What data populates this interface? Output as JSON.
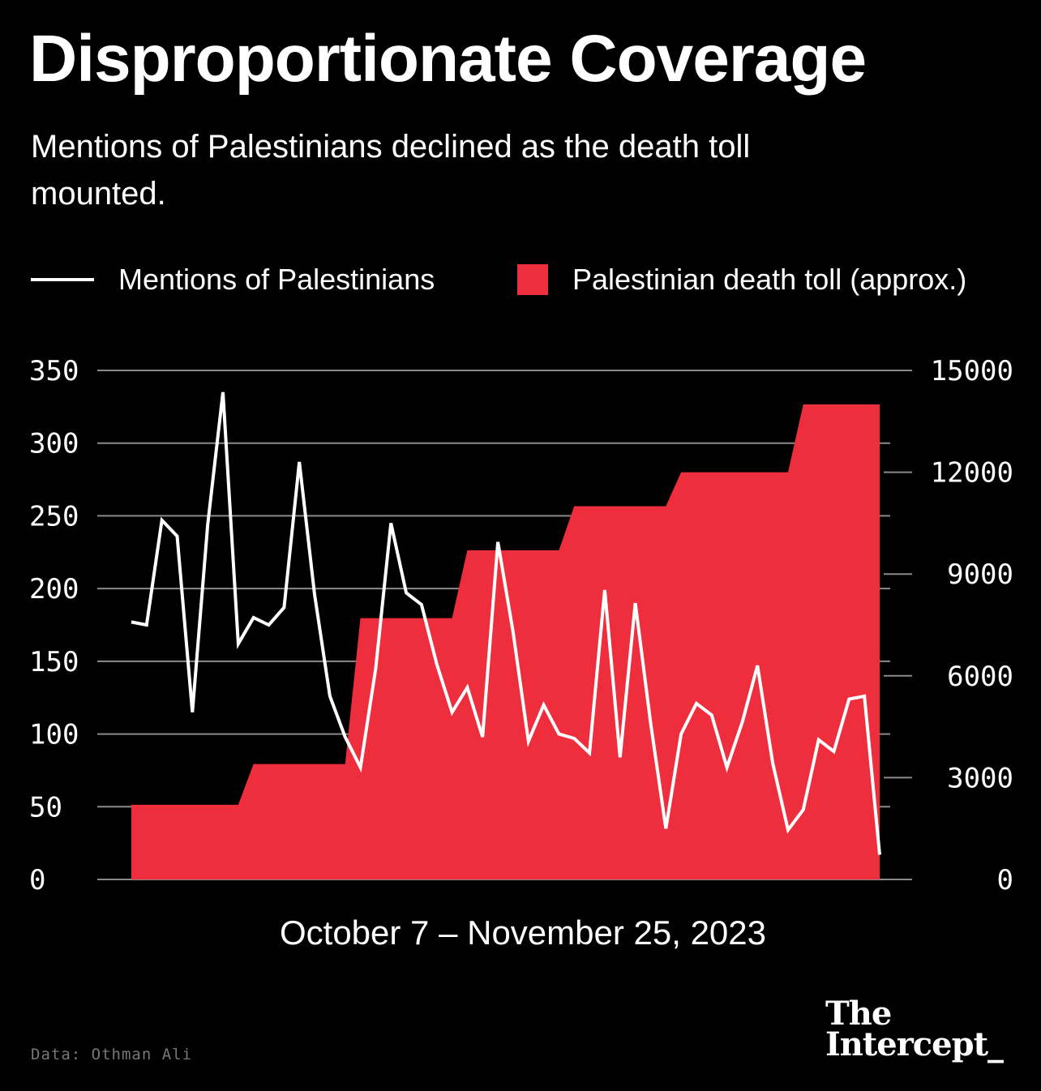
{
  "header": {
    "title": "Disproportionate Coverage",
    "subtitle": "Mentions of Palestinians declined as the death toll mounted."
  },
  "legend": {
    "mentions_label": "Mentions of Palestinians",
    "deaths_label": "Palestinian death toll (approx.)"
  },
  "colors": {
    "background": "#000000",
    "line": "#ffffff",
    "area": "#ee2d3d",
    "grid": "#8a8a8a"
  },
  "chart_data": {
    "type": "line",
    "title": "Disproportionate Coverage",
    "xlabel": "October 7 – November 25, 2023",
    "ylabel": "",
    "ylim": [
      0,
      350
    ],
    "y2lim": [
      0,
      15000
    ],
    "yticks": [
      "0",
      "50",
      "100",
      "150",
      "200",
      "250",
      "300",
      "350"
    ],
    "y2ticks": [
      "0",
      "3000",
      "6000",
      "9000",
      "12000",
      "15000"
    ],
    "grid": true,
    "x": [
      1,
      2,
      3,
      4,
      5,
      6,
      7,
      8,
      9,
      10,
      11,
      12,
      13,
      14,
      15,
      16,
      17,
      18,
      19,
      20,
      21,
      22,
      23,
      24,
      25,
      26,
      27,
      28,
      29,
      30,
      31,
      32,
      33,
      34,
      35,
      36,
      37,
      38,
      39,
      40,
      41,
      42,
      43,
      44,
      45,
      46,
      47,
      48,
      49,
      50
    ],
    "series": [
      {
        "name": "Mentions of Palestinians",
        "axis": "left",
        "style": "line",
        "values": [
          177,
          175,
          247,
          236,
          115,
          244,
          335,
          162,
          180,
          175,
          187,
          287,
          196,
          126,
          98,
          77,
          145,
          245,
          197,
          189,
          148,
          115,
          132,
          98,
          232,
          170,
          95,
          120,
          100,
          97,
          87,
          199,
          84,
          190,
          108,
          35,
          100,
          121,
          113,
          77,
          108,
          147,
          80,
          34,
          48,
          96,
          88,
          124,
          126,
          17
        ]
      },
      {
        "name": "Palestinian death toll (approx.)",
        "axis": "right",
        "style": "area-step",
        "values": [
          2200,
          2200,
          2200,
          2200,
          2200,
          2200,
          2200,
          2200,
          3400,
          3400,
          3400,
          3400,
          3400,
          3400,
          3400,
          7700,
          7700,
          7700,
          7700,
          7700,
          7700,
          7700,
          9700,
          9700,
          9700,
          9700,
          9700,
          9700,
          9700,
          11000,
          11000,
          11000,
          11000,
          11000,
          11000,
          11000,
          12000,
          12000,
          12000,
          12000,
          12000,
          12000,
          12000,
          12000,
          14000,
          14000,
          14000,
          14000,
          14000,
          14000
        ]
      }
    ]
  },
  "footer": {
    "source": "Data: Othman Ali",
    "logo_line1": "The",
    "logo_line2": "Intercept_"
  }
}
